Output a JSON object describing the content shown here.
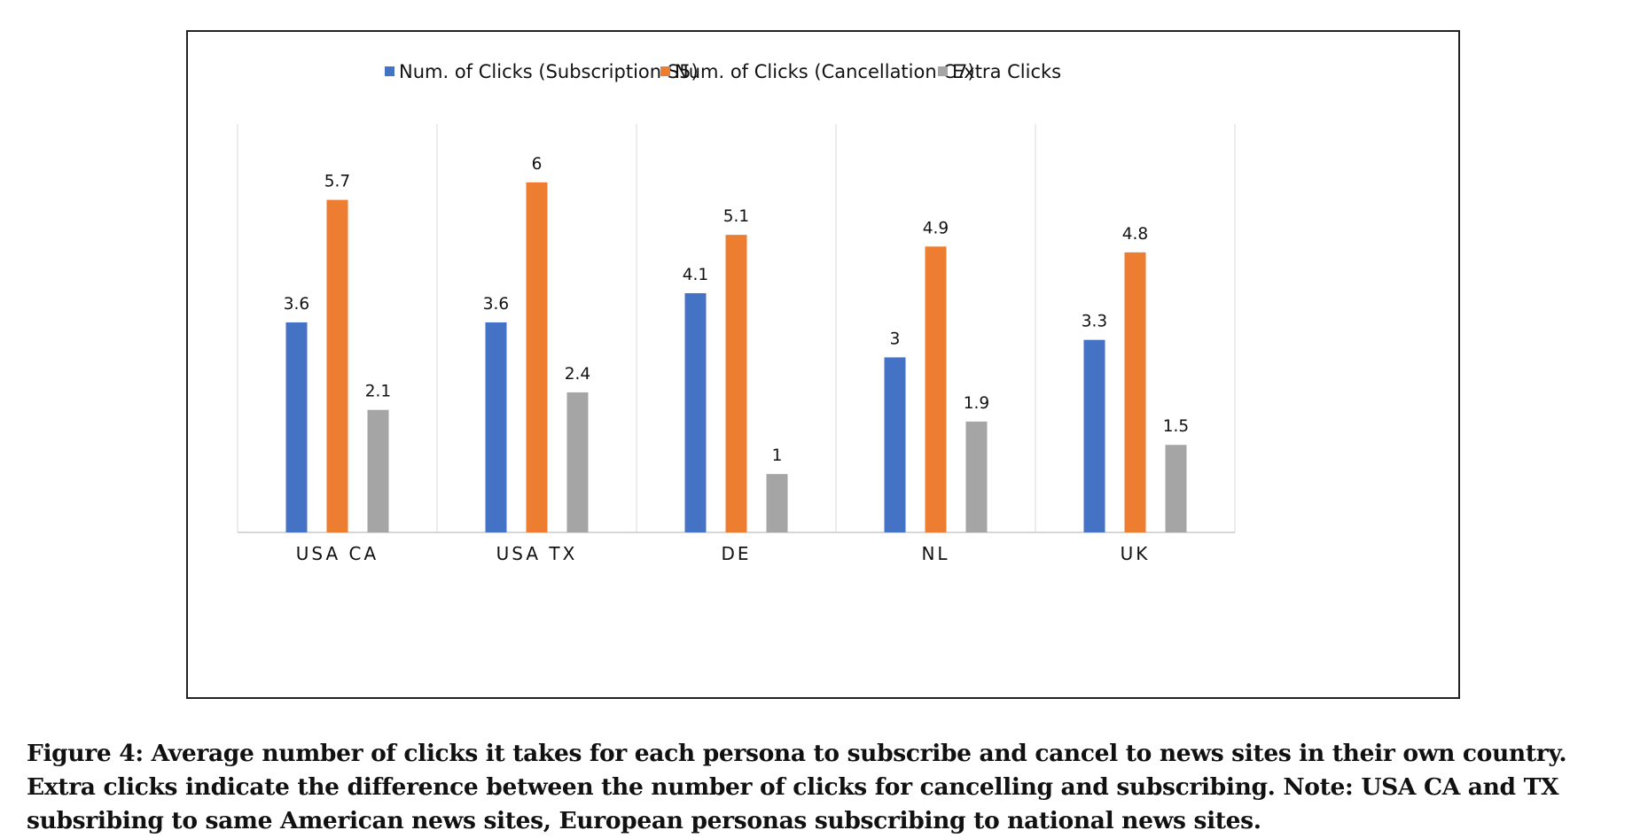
{
  "chart_data": {
    "type": "bar",
    "categories": [
      "USA CA",
      "USA TX",
      "DE",
      "NL",
      "UK"
    ],
    "series": [
      {
        "name": "Num. of Clicks (Subscription S5)",
        "color": "#4472C4",
        "values": [
          3.6,
          3.6,
          4.1,
          3,
          3.3
        ]
      },
      {
        "name": "Num. of Clicks (Cancellation C7)",
        "color": "#ED7D31",
        "values": [
          5.7,
          6,
          5.1,
          4.9,
          4.8
        ]
      },
      {
        "name": "Extra Clicks",
        "color": "#A5A5A5",
        "values": [
          2.1,
          2.4,
          1,
          1.9,
          1.5
        ]
      }
    ],
    "data_labels": [
      [
        "3.6",
        "3.6",
        "4.1",
        "3",
        "3.3"
      ],
      [
        "5.7",
        "6",
        "5.1",
        "4.9",
        "4.8"
      ],
      [
        "2.1",
        "2.4",
        "1",
        "1.9",
        "1.5"
      ]
    ],
    "ylim": [
      0,
      7
    ],
    "legend": "top-center",
    "grid": "vertical category separators",
    "title": "",
    "xlabel": "",
    "ylabel": ""
  },
  "caption": "Figure 4: Average number of clicks it takes for each persona to subscribe and cancel to news sites in their own country. Extra clicks indicate the difference between the number of clicks for cancelling and subscribing. Note: USA CA and TX subsribing to same American news sites, European personas subscribing to national news sites."
}
